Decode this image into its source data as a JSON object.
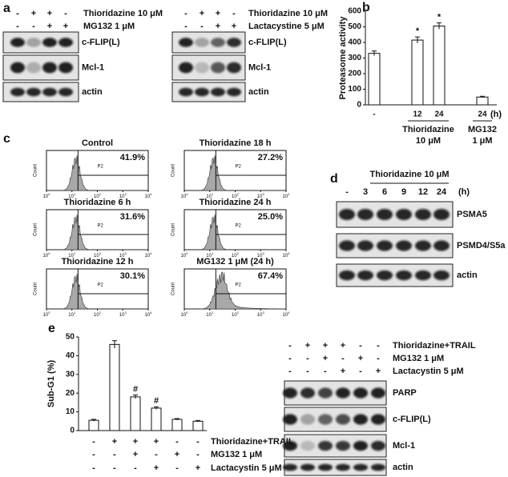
{
  "panels": {
    "a": {
      "label": "a",
      "blots": [
        {
          "conditions": [
            {
              "name": "Thioridazine 10 μM",
              "signs": [
                "-",
                "+",
                "+",
                "-"
              ]
            },
            {
              "name": "MG132 1 μM",
              "signs": [
                "-",
                "-",
                "+",
                "+"
              ]
            }
          ],
          "bands": [
            "c-FLIP(L)",
            "Mcl-1",
            "actin"
          ]
        },
        {
          "conditions": [
            {
              "name": "Thioridazine 10 μM",
              "signs": [
                "-",
                "+",
                "+",
                "-"
              ]
            },
            {
              "name": "Lactacystine 5 μM",
              "signs": [
                "-",
                "-",
                "+",
                "+"
              ]
            }
          ],
          "bands": [
            "c-FLIP(L)",
            "Mcl-1",
            "actin"
          ]
        }
      ]
    },
    "c": {
      "label": "c",
      "y_label": "Count",
      "gate": "P2",
      "x_ticks": [
        [
          "10",
          "0"
        ],
        [
          "10",
          "1"
        ],
        [
          "10",
          "2"
        ],
        [
          "10",
          "3"
        ],
        [
          "10",
          "4"
        ]
      ],
      "plots": [
        {
          "title": "Control",
          "percent": "41.9%"
        },
        {
          "title": "Thioridazine 18 h",
          "percent": "27.2%"
        },
        {
          "title": "Thioridazine 6 h",
          "percent": "31.6%"
        },
        {
          "title": "Thioridazine 24 h",
          "percent": "25.0%"
        },
        {
          "title": "Thioridazine 12 h",
          "percent": "30.1%"
        },
        {
          "title": "MG132 1 μM  (24 h)",
          "percent": "67.4%"
        }
      ]
    },
    "d": {
      "label": "d",
      "title": "Thioridazine 10 μM",
      "lanes": [
        "-",
        "3",
        "6",
        "9",
        "12",
        "24"
      ],
      "unit": "(h)",
      "bands": [
        "PSMA5",
        "PSMD4/S5a",
        "actin"
      ]
    },
    "e_blot": {
      "conditions": [
        {
          "name": "Thioridazine+TRAIL",
          "signs": [
            "-",
            "+",
            "+",
            "+",
            "-",
            "-"
          ]
        },
        {
          "name": "MG132 1 μM",
          "signs": [
            "-",
            "-",
            "+",
            "-",
            "+",
            "-"
          ]
        },
        {
          "name": "Lactacystin 5 μM",
          "signs": [
            "-",
            "-",
            "-",
            "+",
            "-",
            "+"
          ]
        }
      ],
      "bands": [
        "PARP",
        "c-FLIP(L)",
        "Mcl-1",
        "actin"
      ]
    }
  },
  "chart_data": [
    {
      "type": "bar",
      "panel": "b",
      "y_label": "Proteasome activity",
      "categories": [
        "-",
        null,
        "12",
        "24",
        null,
        "24"
      ],
      "values": [
        330,
        null,
        415,
        505,
        null,
        50
      ],
      "errors": [
        15,
        null,
        20,
        20,
        null,
        5
      ],
      "markers": [
        null,
        null,
        "*",
        "*",
        null,
        null
      ],
      "unit_label": "(h)",
      "group_labels": [
        [
          "Thioridazine",
          "10 μM"
        ],
        [
          "MG132",
          "1 μM"
        ]
      ],
      "color": "#ffffff",
      "ylim": [
        0,
        600
      ],
      "yticks": [
        0,
        100,
        200,
        300,
        400,
        500,
        600
      ]
    },
    {
      "type": "bar",
      "panel": "e",
      "y_label": "Sub-G1 (%)",
      "values": [
        5.5,
        46,
        18,
        12,
        6,
        5
      ],
      "errors": [
        0.5,
        2,
        1,
        0.7,
        0.4,
        0.4
      ],
      "markers": [
        null,
        null,
        "#",
        "#",
        null,
        null
      ],
      "conditions": [
        {
          "name": "Thioridazine+TRAIL",
          "signs": [
            "-",
            "+",
            "+",
            "+",
            "-",
            "-"
          ]
        },
        {
          "name": "MG132 1 μM",
          "signs": [
            "-",
            "-",
            "+",
            "-",
            "+",
            "-"
          ]
        },
        {
          "name": "Lactacystin 5 μM",
          "signs": [
            "-",
            "-",
            "-",
            "+",
            "-",
            "+"
          ]
        }
      ],
      "color": "#ffffff",
      "ylim": [
        0,
        50
      ],
      "yticks": [
        0,
        10,
        20,
        30,
        40,
        50
      ]
    }
  ]
}
